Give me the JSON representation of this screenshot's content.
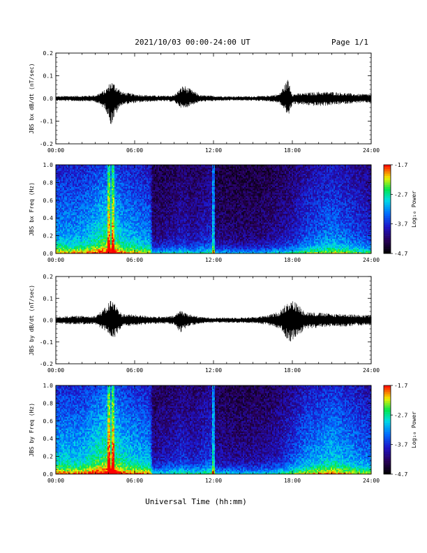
{
  "header": {
    "title": "2021/10/03  00:00-24:00 UT",
    "page": "Page 1/1"
  },
  "x_axis": {
    "title": "Universal Time (hh:mm)",
    "range_hours": [
      0,
      24
    ],
    "ticks": [
      "00:00",
      "06:00",
      "12:00",
      "18:00",
      "24:00"
    ]
  },
  "colorbar": {
    "label": "Log₁₀ Power",
    "range": [
      -4.7,
      -1.7
    ],
    "ticks": [
      "-1.7",
      "-2.7",
      "-3.7",
      "-4.7"
    ]
  },
  "chart_data": [
    {
      "type": "line",
      "ylabel": "JBS bx dB/dt (nT/sec)",
      "xlim": [
        0,
        24
      ],
      "ylim": [
        -0.2,
        0.2
      ],
      "yticks": [
        "0.2",
        "0.1",
        "0.0",
        "-0.1",
        "-0.2"
      ],
      "envelope": {
        "hours": [
          0,
          1,
          2,
          3,
          3.8,
          4.2,
          4.6,
          5,
          6,
          7,
          8,
          9,
          9.7,
          10.3,
          11,
          12,
          13,
          14,
          15,
          16,
          17,
          17.7,
          18,
          19,
          20,
          21,
          22,
          23,
          24
        ],
        "max": [
          0.01,
          0.012,
          0.012,
          0.015,
          0.04,
          0.08,
          0.06,
          0.03,
          0.02,
          0.015,
          0.012,
          0.015,
          0.06,
          0.04,
          0.015,
          0.012,
          0.01,
          0.01,
          0.01,
          0.012,
          0.02,
          0.09,
          0.02,
          0.025,
          0.03,
          0.03,
          0.025,
          0.02,
          0.02
        ],
        "min": [
          -0.01,
          -0.012,
          -0.012,
          -0.015,
          -0.05,
          -0.12,
          -0.07,
          -0.03,
          -0.02,
          -0.015,
          -0.012,
          -0.015,
          -0.05,
          -0.03,
          -0.015,
          -0.012,
          -0.01,
          -0.01,
          -0.01,
          -0.012,
          -0.02,
          -0.08,
          -0.025,
          -0.03,
          -0.035,
          -0.03,
          -0.025,
          -0.02,
          -0.02
        ]
      }
    },
    {
      "type": "heatmap",
      "ylabel": "JBS bx Freq (Hz)",
      "xlim": [
        0,
        24
      ],
      "ylim": [
        0,
        1.0
      ],
      "yticks": [
        "1.0",
        "0.8",
        "0.6",
        "0.4",
        "0.2",
        "0.0"
      ],
      "zlim": [
        -4.7,
        -1.7
      ],
      "intensity_profile": {
        "hours": [
          0,
          2,
          3.8,
          4.2,
          5,
          6,
          7.2,
          7.4,
          9,
          9.5,
          10.5,
          12,
          12.1,
          14,
          16,
          17,
          18,
          19,
          20,
          21,
          22,
          23,
          24
        ],
        "level": [
          0.55,
          0.55,
          0.7,
          0.75,
          0.6,
          0.55,
          0.5,
          0.2,
          0.25,
          0.3,
          0.25,
          0.35,
          0.2,
          0.18,
          0.2,
          0.25,
          0.3,
          0.4,
          0.45,
          0.5,
          0.45,
          0.4,
          0.35
        ]
      }
    },
    {
      "type": "line",
      "ylabel": "JBS by dB/dt (nT/sec)",
      "xlim": [
        0,
        24
      ],
      "ylim": [
        -0.2,
        0.2
      ],
      "yticks": [
        "0.2",
        "0.1",
        "0.0",
        "-0.1",
        "-0.2"
      ],
      "envelope": {
        "hours": [
          0,
          1,
          2,
          3,
          3.8,
          4.2,
          4.6,
          5,
          6,
          7,
          8,
          9,
          9.5,
          10,
          11,
          12,
          13,
          14,
          15,
          16,
          17,
          17.8,
          18.3,
          19,
          20,
          21,
          22,
          23,
          24
        ],
        "max": [
          0.015,
          0.02,
          0.02,
          0.02,
          0.06,
          0.1,
          0.07,
          0.03,
          0.025,
          0.02,
          0.015,
          0.02,
          0.05,
          0.03,
          0.015,
          0.012,
          0.012,
          0.012,
          0.015,
          0.02,
          0.04,
          0.1,
          0.08,
          0.04,
          0.035,
          0.03,
          0.03,
          0.025,
          0.025
        ],
        "min": [
          -0.015,
          -0.02,
          -0.02,
          -0.02,
          -0.05,
          -0.08,
          -0.08,
          -0.03,
          -0.025,
          -0.02,
          -0.015,
          -0.02,
          -0.06,
          -0.03,
          -0.015,
          -0.012,
          -0.012,
          -0.012,
          -0.015,
          -0.02,
          -0.04,
          -0.1,
          -0.08,
          -0.04,
          -0.035,
          -0.03,
          -0.03,
          -0.025,
          -0.025
        ]
      }
    },
    {
      "type": "heatmap",
      "ylabel": "JBS by Freq (Hz)",
      "xlim": [
        0,
        24
      ],
      "ylim": [
        0,
        1.0
      ],
      "yticks": [
        "1.0",
        "0.8",
        "0.6",
        "0.4",
        "0.2",
        "0.0"
      ],
      "zlim": [
        -4.7,
        -1.7
      ],
      "intensity_profile": {
        "hours": [
          0,
          2,
          3.8,
          4.2,
          5,
          6,
          7.2,
          7.4,
          9,
          9.5,
          10.5,
          12,
          12.1,
          14,
          16,
          17,
          18,
          19,
          20,
          21,
          22,
          23,
          24
        ],
        "level": [
          0.6,
          0.6,
          0.75,
          0.8,
          0.65,
          0.6,
          0.55,
          0.25,
          0.3,
          0.35,
          0.3,
          0.4,
          0.25,
          0.22,
          0.25,
          0.3,
          0.4,
          0.5,
          0.55,
          0.6,
          0.55,
          0.5,
          0.45
        ]
      }
    }
  ]
}
